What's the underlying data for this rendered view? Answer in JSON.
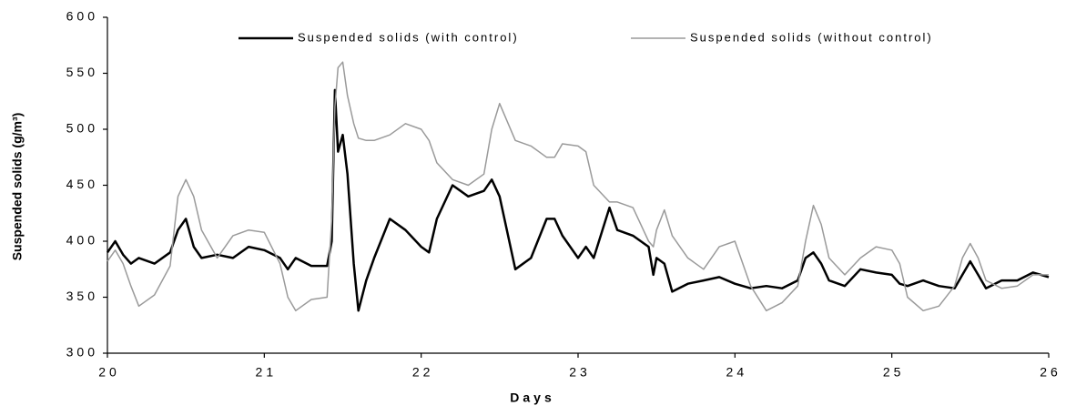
{
  "chart_data": {
    "type": "line",
    "y_label": "Suspended solids (g/m³)",
    "x_label": "Days",
    "xlim": [
      20,
      26
    ],
    "xticks": [
      20,
      21,
      22,
      23,
      24,
      25,
      26
    ],
    "ylim": [
      300,
      600
    ],
    "yticks": [
      300,
      350,
      400,
      450,
      500,
      550,
      600
    ],
    "x": [
      20,
      20.05,
      20.1,
      20.15,
      20.2,
      20.3,
      20.4,
      20.45,
      20.5,
      20.55,
      20.6,
      20.7,
      20.8,
      20.9,
      21,
      21.1,
      21.15,
      21.2,
      21.3,
      21.4,
      21.43,
      21.45,
      21.47,
      21.5,
      21.53,
      21.57,
      21.6,
      21.65,
      21.7,
      21.8,
      21.9,
      22,
      22.05,
      22.1,
      22.2,
      22.3,
      22.4,
      22.45,
      22.5,
      22.6,
      22.7,
      22.8,
      22.85,
      22.9,
      23,
      23.05,
      23.1,
      23.2,
      23.25,
      23.35,
      23.45,
      23.48,
      23.5,
      23.55,
      23.6,
      23.7,
      23.8,
      23.9,
      24,
      24.1,
      24.2,
      24.3,
      24.4,
      24.45,
      24.5,
      24.55,
      24.6,
      24.7,
      24.8,
      24.9,
      25,
      25.05,
      25.1,
      25.2,
      25.3,
      25.4,
      25.45,
      25.5,
      25.55,
      25.6,
      25.7,
      25.8,
      25.9,
      26
    ],
    "series": [
      {
        "name": "Suspended solids (with control)",
        "color": "#000000",
        "width": 2.5,
        "values": [
          390,
          400,
          388,
          380,
          385,
          380,
          390,
          410,
          420,
          395,
          385,
          388,
          385,
          395,
          392,
          385,
          375,
          385,
          378,
          378,
          400,
          535,
          480,
          495,
          460,
          380,
          338,
          365,
          385,
          420,
          410,
          395,
          390,
          420,
          450,
          440,
          445,
          455,
          440,
          375,
          385,
          420,
          420,
          405,
          385,
          395,
          385,
          430,
          410,
          405,
          395,
          370,
          385,
          380,
          355,
          362,
          365,
          368,
          362,
          358,
          360,
          358,
          365,
          385,
          390,
          380,
          365,
          360,
          375,
          372,
          370,
          362,
          360,
          365,
          360,
          358,
          370,
          382,
          370,
          358,
          365,
          365,
          372,
          368
        ]
      },
      {
        "name": "Suspended solids (without control)",
        "color": "#9a9a9a",
        "width": 1.5,
        "values": [
          382,
          392,
          380,
          360,
          342,
          352,
          378,
          440,
          455,
          440,
          410,
          385,
          405,
          410,
          408,
          380,
          350,
          338,
          348,
          350,
          420,
          520,
          555,
          560,
          530,
          505,
          492,
          490,
          490,
          495,
          505,
          500,
          490,
          470,
          455,
          450,
          460,
          500,
          523,
          490,
          485,
          475,
          475,
          487,
          485,
          480,
          450,
          435,
          435,
          430,
          400,
          395,
          410,
          428,
          405,
          385,
          375,
          395,
          400,
          360,
          338,
          345,
          360,
          400,
          432,
          415,
          385,
          370,
          385,
          395,
          392,
          380,
          350,
          338,
          342,
          360,
          385,
          398,
          385,
          365,
          358,
          360,
          370,
          370
        ]
      }
    ]
  }
}
